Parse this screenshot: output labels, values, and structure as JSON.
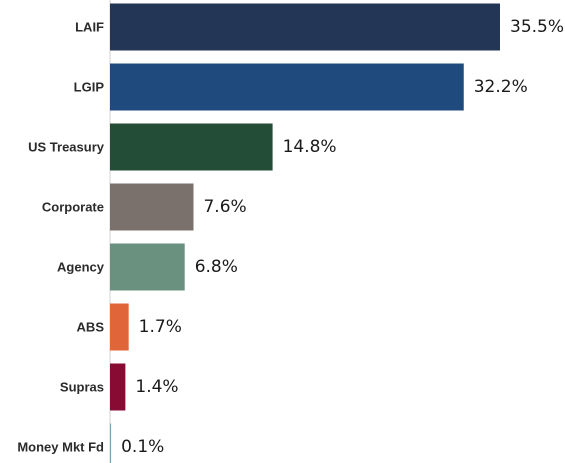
{
  "chart_data": {
    "type": "bar",
    "orientation": "horizontal",
    "categories": [
      "LAIF",
      "LGIP",
      "US Treasury",
      "Corporate",
      "Agency",
      "ABS",
      "Supras",
      "Money Mkt Fd"
    ],
    "values": [
      35.5,
      32.2,
      14.8,
      7.6,
      6.8,
      1.7,
      1.4,
      0.1
    ],
    "value_labels": [
      "35.5%",
      "32.2%",
      "14.8%",
      "7.6%",
      "6.8%",
      "1.7%",
      "1.4%",
      "0.1%"
    ],
    "colors": [
      "#233656",
      "#1f4a7e",
      "#234d36",
      "#7b716c",
      "#6a917f",
      "#e0663a",
      "#870b33",
      "#7f9fb5"
    ],
    "title": "",
    "xlabel": "",
    "ylabel": "",
    "xlim": [
      0,
      35.5
    ],
    "grid": false,
    "legend": "none"
  }
}
